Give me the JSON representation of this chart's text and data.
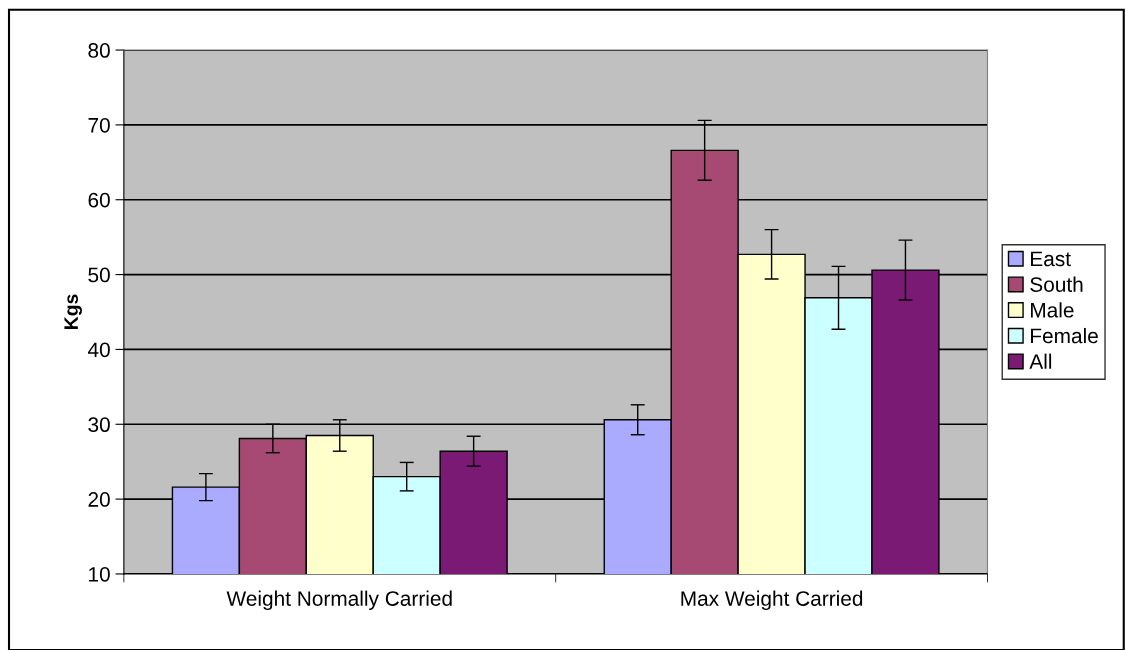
{
  "chart_data": {
    "type": "bar",
    "ylabel": "Kgs",
    "categories": [
      "Weight Normally Carried",
      "Max Weight Carried"
    ],
    "series": [
      {
        "name": "East",
        "color": "#aaaaff",
        "values": [
          21.6,
          30.6
        ],
        "errors": [
          1.8,
          2.0
        ]
      },
      {
        "name": "South",
        "color": "#a64a74",
        "values": [
          28.1,
          66.6
        ],
        "errors": [
          1.9,
          4.0
        ]
      },
      {
        "name": "Male",
        "color": "#ffffcc",
        "values": [
          28.5,
          52.7
        ],
        "errors": [
          2.1,
          3.3
        ]
      },
      {
        "name": "Female",
        "color": "#ccffff",
        "values": [
          23.0,
          46.9
        ],
        "errors": [
          1.9,
          4.2
        ]
      },
      {
        "name": "All",
        "color": "#7b1a74",
        "values": [
          26.4,
          50.6
        ],
        "errors": [
          2.0,
          4.0
        ]
      }
    ],
    "ylim": [
      10,
      80
    ],
    "yticks": [
      10,
      20,
      30,
      40,
      50,
      60,
      70,
      80
    ],
    "grid": "y",
    "legend": "right"
  }
}
